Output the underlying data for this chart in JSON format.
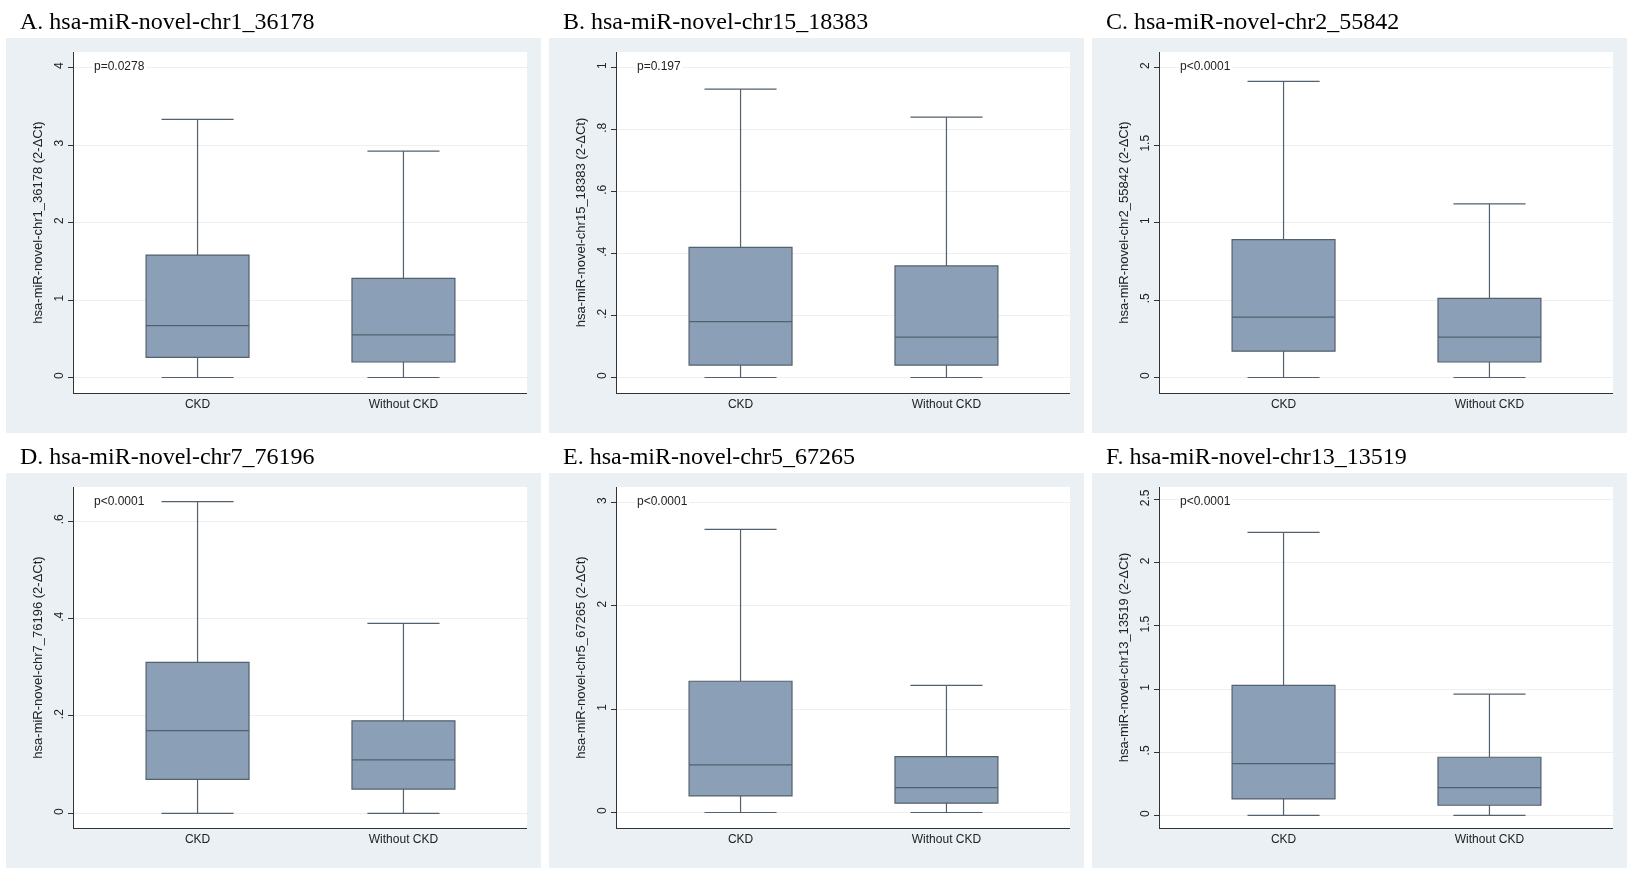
{
  "chart_data": [
    {
      "type": "box",
      "title": "A. hsa-miR-novel-chr1_36178",
      "ylabel": "hsa-miR-novel-chr1_36178 (2-ΔCt)",
      "categories": [
        "CKD",
        "Without CKD"
      ],
      "color": "#8ba0b6",
      "ylim": [
        -0.2,
        4.2
      ],
      "yticks": [
        0,
        1,
        2,
        3,
        4
      ],
      "grid": "y",
      "annotations": [
        "p=0.0278"
      ],
      "boxes": [
        {
          "low": 0,
          "q1": 0.26,
          "median": 0.67,
          "q3": 1.58,
          "high": 3.33
        },
        {
          "low": 0,
          "q1": 0.2,
          "median": 0.55,
          "q3": 1.28,
          "high": 2.92
        }
      ]
    },
    {
      "type": "box",
      "title": "B. hsa-miR-novel-chr15_18383",
      "ylabel": "hsa-miR-novel-chr15_18383 (2-ΔCt)",
      "categories": [
        "CKD",
        "Without CKD"
      ],
      "color": "#8ba0b6",
      "ylim": [
        -0.05,
        1.05
      ],
      "yticks": [
        0,
        {
          "value": 0.2,
          "label": ".2"
        },
        {
          "value": 0.4,
          "label": ".4"
        },
        {
          "value": 0.6,
          "label": ".6"
        },
        {
          "value": 0.8,
          "label": ".8"
        },
        1
      ],
      "grid": "y",
      "annotations": [
        "p=0.197"
      ],
      "boxes": [
        {
          "low": 0,
          "q1": 0.04,
          "median": 0.18,
          "q3": 0.42,
          "high": 0.93
        },
        {
          "low": 0,
          "q1": 0.04,
          "median": 0.13,
          "q3": 0.36,
          "high": 0.84
        }
      ]
    },
    {
      "type": "box",
      "title": "C. hsa-miR-novel-chr2_55842",
      "ylabel": "hsa-miR-novel-chr2_55842 (2-ΔCt)",
      "categories": [
        "CKD",
        "Without CKD"
      ],
      "color": "#8ba0b6",
      "ylim": [
        -0.1,
        2.1
      ],
      "yticks": [
        0,
        {
          "value": 0.5,
          "label": ".5"
        },
        1,
        1.5,
        2
      ],
      "grid": "y",
      "annotations": [
        "p<0.0001"
      ],
      "boxes": [
        {
          "low": 0,
          "q1": 0.17,
          "median": 0.39,
          "q3": 0.89,
          "high": 1.91
        },
        {
          "low": 0,
          "q1": 0.1,
          "median": 0.26,
          "q3": 0.51,
          "high": 1.12
        }
      ]
    },
    {
      "type": "box",
      "title": "D. hsa-miR-novel-chr7_76196",
      "ylabel": "hsa-miR-novel-chr7_76196 (2-ΔCt)",
      "categories": [
        "CKD",
        "Without CKD"
      ],
      "color": "#8ba0b6",
      "ylim": [
        -0.03,
        0.67
      ],
      "yticks": [
        0,
        {
          "value": 0.2,
          "label": ".2"
        },
        {
          "value": 0.4,
          "label": ".4"
        },
        {
          "value": 0.6,
          "label": ".6"
        }
      ],
      "grid": "y",
      "annotations": [
        "p<0.0001"
      ],
      "boxes": [
        {
          "low": 0,
          "q1": 0.07,
          "median": 0.17,
          "q3": 0.31,
          "high": 0.64
        },
        {
          "low": 0,
          "q1": 0.05,
          "median": 0.11,
          "q3": 0.19,
          "high": 0.39
        }
      ]
    },
    {
      "type": "box",
      "title": "E. hsa-miR-novel-chr5_67265",
      "ylabel": "hsa-miR-novel-chr5_67265 (2-ΔCt)",
      "categories": [
        "CKD",
        "Without CKD"
      ],
      "color": "#8ba0b6",
      "ylim": [
        -0.15,
        3.15
      ],
      "yticks": [
        0,
        1,
        2,
        3
      ],
      "grid": "y",
      "annotations": [
        "p<0.0001"
      ],
      "boxes": [
        {
          "low": 0,
          "q1": 0.16,
          "median": 0.46,
          "q3": 1.27,
          "high": 2.74
        },
        {
          "low": 0,
          "q1": 0.09,
          "median": 0.24,
          "q3": 0.54,
          "high": 1.23
        }
      ]
    },
    {
      "type": "box",
      "title": "F. hsa-miR-novel-chr13_13519",
      "ylabel": "hsa-miR-novel-chr13_13519 (2-ΔCt)",
      "categories": [
        "CKD",
        "Without CKD"
      ],
      "color": "#8ba0b6",
      "ylim": [
        -0.1,
        2.6
      ],
      "yticks": [
        0,
        {
          "value": 0.5,
          "label": ".5"
        },
        1,
        1.5,
        2,
        2.5
      ],
      "grid": "y",
      "annotations": [
        "p<0.0001"
      ],
      "boxes": [
        {
          "low": 0,
          "q1": 0.13,
          "median": 0.41,
          "q3": 1.03,
          "high": 2.24
        },
        {
          "low": 0,
          "q1": 0.08,
          "median": 0.22,
          "q3": 0.46,
          "high": 0.96
        }
      ]
    }
  ]
}
